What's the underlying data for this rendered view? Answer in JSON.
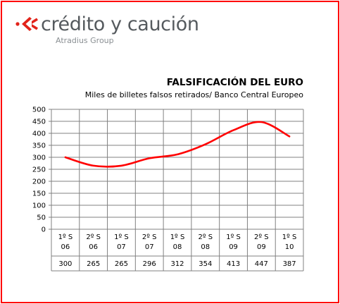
{
  "brand": {
    "name": "crédito y caución",
    "tagline": "Atradius Group",
    "mark_icon": "chevron-arrows-logo",
    "mark_color": "#e2231a",
    "text_color": "#555a5e"
  },
  "frame_color": "#ff0000",
  "chart_data": {
    "type": "line",
    "title": "FALSIFICACIÓN DEL EURO",
    "subtitle": "Miles de billetes falsos retirados/ Banco Central Europeo",
    "categories": [
      [
        "1º S",
        "06"
      ],
      [
        "2º S",
        "06"
      ],
      [
        "1º S",
        "07"
      ],
      [
        "2º S",
        "07"
      ],
      [
        "1º S",
        "08"
      ],
      [
        "2º S",
        "08"
      ],
      [
        "1º S",
        "09"
      ],
      [
        "2º S",
        "09"
      ],
      [
        "1º S",
        "10"
      ]
    ],
    "series": [
      {
        "values": [
          300,
          265,
          265,
          296,
          312,
          354,
          413,
          447,
          387
        ],
        "color": "#ff0000",
        "smooth": true
      }
    ],
    "value_labels": [
      "300",
      "265",
      "265",
      "296",
      "312",
      "354",
      "413",
      "447",
      "387"
    ],
    "ylim": [
      0,
      500
    ],
    "yticks": [
      0,
      50,
      100,
      150,
      200,
      250,
      300,
      350,
      400,
      450,
      500
    ],
    "grid": true,
    "legend": "none",
    "data_table": true
  }
}
